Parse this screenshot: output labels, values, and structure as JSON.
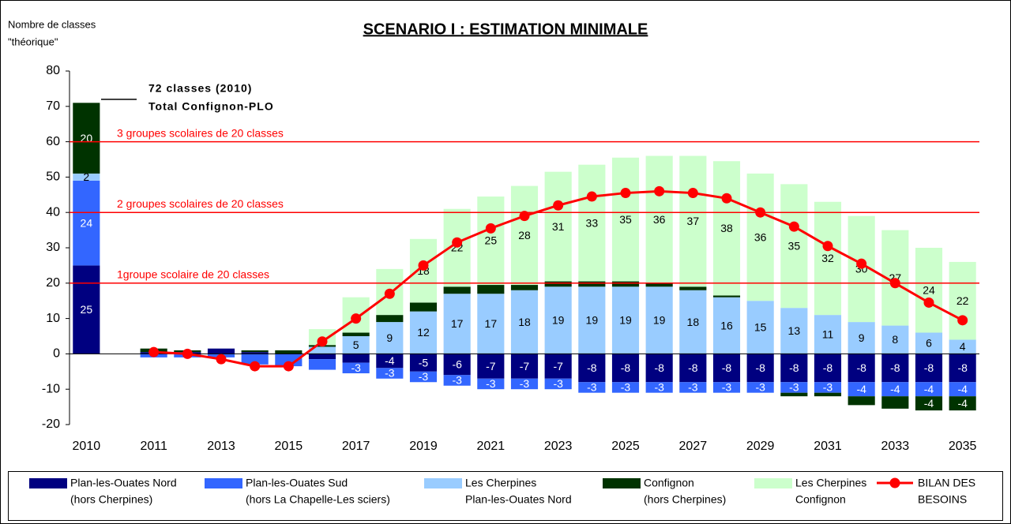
{
  "chart_data": {
    "type": "stacked_bar_line",
    "title": "SCENARIO I : ESTIMATION MINIMALE",
    "y_label": [
      "Nombre de classes",
      "\"théorique\""
    ],
    "categories": [
      "2010",
      null,
      "2011",
      null,
      "2013",
      null,
      "2015",
      null,
      "2017",
      null,
      "2019",
      null,
      "2021",
      null,
      "2023",
      null,
      "2025",
      null,
      "2027",
      null,
      "2029",
      null,
      "2031",
      null,
      "2033",
      null,
      "2035"
    ],
    "ylim": [
      -20,
      80
    ],
    "yticks": [
      -20,
      -10,
      0,
      10,
      20,
      30,
      40,
      50,
      60,
      70,
      80
    ],
    "reference_lines": [
      {
        "value": 60,
        "label": "3 groupes scolaires de 20 classes",
        "color": "#ff0000"
      },
      {
        "value": 40,
        "label": "2 groupes scolaires de 20 classes",
        "color": "#ff0000"
      },
      {
        "value": 20,
        "label": "1groupe scolaire de 20 classes",
        "color": "#ff0000"
      }
    ],
    "marker_line": {
      "value": 72,
      "label": [
        "72 classes (2010)",
        "Total Confignon-PLO"
      ],
      "color": "#000000"
    },
    "series": [
      {
        "name": [
          "Plan-les-Ouates Nord",
          "(hors Cherpines)"
        ],
        "color": "#000080",
        "text_color": "#ffffff",
        "values": [
          25,
          null,
          0.5,
          0.5,
          1.5,
          0.5,
          null,
          -1.5,
          -2.5,
          -4,
          -5,
          -6,
          -7,
          -7,
          -7,
          -8,
          -8,
          -8,
          -8,
          -8,
          -8,
          -8,
          -8,
          -8,
          -8,
          -8,
          -8
        ],
        "value_labels": [
          "25",
          null,
          null,
          null,
          null,
          null,
          null,
          null,
          null,
          "-4",
          "-5",
          "-6",
          "-7",
          "-7",
          "-7",
          "-8",
          "-8",
          "-8",
          "-8",
          "-8",
          "-8",
          "-8",
          "-8",
          "-8",
          "-8",
          "-8",
          "-8"
        ]
      },
      {
        "name": [
          "Plan-les-Ouates Sud",
          "(hors La Chapelle-Les sciers)"
        ],
        "color": "#3366ff",
        "text_color": "#ffffff",
        "values": [
          24,
          null,
          -1,
          -1,
          -1,
          -3,
          -3.5,
          -3,
          -3,
          -3,
          -3,
          -3,
          -3,
          -3,
          -3,
          -3,
          -3,
          -3,
          -3,
          -3,
          -3,
          -3,
          -3,
          -4,
          -4,
          -4,
          -4
        ],
        "value_labels": [
          "24",
          null,
          null,
          null,
          null,
          null,
          null,
          null,
          "-3",
          "-3",
          "-3",
          "-3",
          "-3",
          "-3",
          "-3",
          "-3",
          "-3",
          "-3",
          "-3",
          "-3",
          "-3",
          "-3",
          "-3",
          "-4",
          "-4",
          "-4",
          "-4"
        ]
      },
      {
        "name": [
          "Les Cherpines",
          "Plan-les-Ouates Nord"
        ],
        "color": "#99ccff",
        "text_color": "#000000",
        "values": [
          2,
          null,
          null,
          null,
          null,
          null,
          null,
          2,
          5,
          9,
          12,
          17,
          17,
          18,
          19,
          19,
          19,
          19,
          18,
          16,
          15,
          13,
          11,
          9,
          8,
          6,
          4
        ],
        "value_labels": [
          "2",
          null,
          null,
          null,
          null,
          null,
          null,
          null,
          "5",
          "9",
          "12",
          "17",
          "17",
          "18",
          "19",
          "19",
          "19",
          "19",
          "18",
          "16",
          "15",
          "13",
          "11",
          "9",
          "8",
          "6",
          "4"
        ]
      },
      {
        "name": [
          "Confignon",
          "(hors Cherpines)"
        ],
        "color": "#003300",
        "text_color": "#ffffff",
        "values": [
          20,
          null,
          1,
          0.5,
          null,
          0.5,
          1,
          0.5,
          1,
          2,
          2.5,
          2,
          2.5,
          1.5,
          1.5,
          1.5,
          1.5,
          1,
          1,
          0.5,
          null,
          -1,
          -1,
          -2.5,
          -3.5,
          -4,
          -4
        ],
        "value_labels": [
          "20",
          null,
          null,
          null,
          null,
          null,
          null,
          null,
          null,
          null,
          null,
          null,
          null,
          null,
          null,
          null,
          null,
          null,
          null,
          null,
          null,
          null,
          null,
          null,
          null,
          "-4",
          "-4"
        ]
      },
      {
        "name": [
          "Les Cherpines",
          "Confignon"
        ],
        "color": "#ccffcc",
        "text_color": "#000000",
        "values": [
          null,
          null,
          null,
          null,
          null,
          null,
          null,
          4.5,
          10,
          13,
          18,
          22,
          25,
          28,
          31,
          33,
          35,
          36,
          37,
          38,
          36,
          35,
          32,
          30,
          27,
          24,
          22
        ],
        "value_labels": [
          null,
          null,
          null,
          null,
          null,
          null,
          null,
          null,
          null,
          null,
          "18",
          "22",
          "25",
          "28",
          "31",
          "33",
          "35",
          "36",
          "37",
          "38",
          "36",
          "35",
          "32",
          "30",
          "27",
          "24",
          "22"
        ]
      },
      {
        "name": [
          "BILAN DES",
          "BESOINS"
        ],
        "color": "#ff0000",
        "kind": "line",
        "values": [
          null,
          null,
          0.5,
          0,
          -1.5,
          -3.5,
          -3.5,
          3.5,
          10,
          17,
          25,
          31.5,
          35.5,
          39,
          42,
          44.5,
          45.5,
          46,
          45.5,
          44,
          40,
          36,
          30.5,
          25.5,
          20,
          14.5,
          9.5
        ]
      }
    ]
  }
}
